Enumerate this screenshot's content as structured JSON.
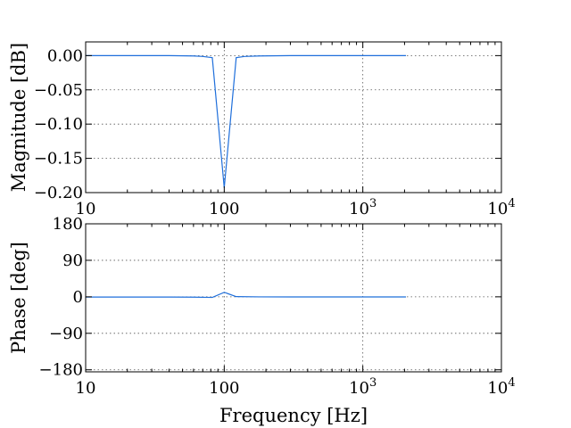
{
  "chart_data": [
    {
      "type": "line",
      "xscale": "log",
      "xlim": [
        10,
        10000
      ],
      "ylim": [
        -0.2,
        0.02
      ],
      "ylabel": "Magnitude [dB]",
      "xlabel": "",
      "grid": true,
      "xticks": [
        {
          "value": 10,
          "label": "10"
        },
        {
          "value": 100,
          "label": "100"
        },
        {
          "value": 1000,
          "label": "10",
          "sup": "3"
        },
        {
          "value": 10000,
          "label": "10",
          "sup": "4"
        }
      ],
      "yticks": [
        {
          "value": 0.0,
          "label": "0.00"
        },
        {
          "value": -0.05,
          "label": "−0.05"
        },
        {
          "value": -0.1,
          "label": "−0.10"
        },
        {
          "value": -0.15,
          "label": "−0.15"
        },
        {
          "value": -0.2,
          "label": "−0.20"
        }
      ],
      "series": [
        {
          "color": "#1f6fdb",
          "x": [
            10,
            20,
            40,
            60,
            70,
            82,
            100,
            122,
            140,
            180,
            300,
            600,
            1000,
            2048
          ],
          "y": [
            0.0,
            0.0,
            0.0,
            -0.0005,
            -0.0012,
            -0.003,
            -0.193,
            -0.003,
            -0.0012,
            -0.0005,
            0.0,
            0.0,
            0.0,
            0.0
          ]
        }
      ]
    },
    {
      "type": "line",
      "xscale": "log",
      "xlim": [
        10,
        10000
      ],
      "ylim": [
        -185,
        180
      ],
      "ylabel": "Phase [deg]",
      "xlabel": "Frequency [Hz]",
      "grid": true,
      "xticks": [
        {
          "value": 10,
          "label": "10"
        },
        {
          "value": 100,
          "label": "100"
        },
        {
          "value": 1000,
          "label": "10",
          "sup": "3"
        },
        {
          "value": 10000,
          "label": "10",
          "sup": "4"
        }
      ],
      "yticks": [
        {
          "value": 180,
          "label": "180"
        },
        {
          "value": 90,
          "label": "90"
        },
        {
          "value": 0,
          "label": "0"
        },
        {
          "value": -90,
          "label": "−90"
        },
        {
          "value": -180,
          "label": "−180"
        }
      ],
      "series": [
        {
          "color": "#1f6fdb",
          "x": [
            10,
            20,
            40,
            60,
            82,
            100,
            122,
            180,
            300,
            1000,
            2048
          ],
          "y": [
            -0.5,
            -0.5,
            -0.6,
            -0.8,
            -1.5,
            11,
            0.5,
            -0.2,
            -0.3,
            -0.3,
            -0.3
          ]
        }
      ]
    }
  ]
}
